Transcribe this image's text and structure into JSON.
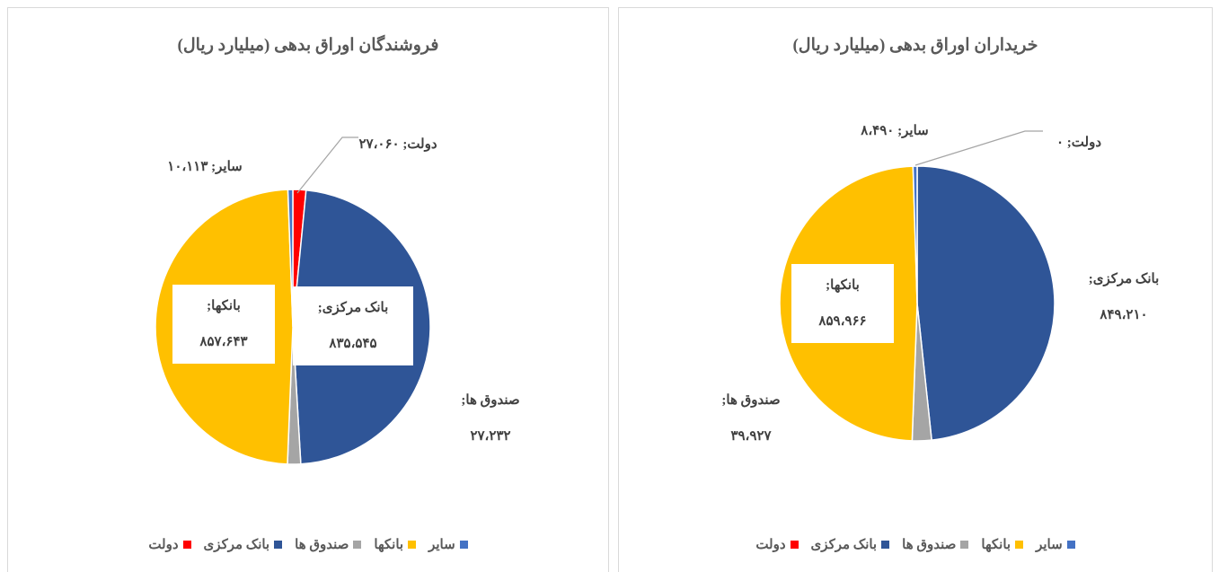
{
  "chart_data": [
    {
      "type": "pie",
      "title": "فروشندگان اوراق بدهی (میلیارد ریال)",
      "categories": [
        "دولت",
        "بانک مرکزی",
        "صندوق ها",
        "بانکها",
        "سایر"
      ],
      "values": [
        27060,
        835545,
        27232,
        857643,
        10113
      ],
      "value_labels": [
        "دولت; ۲۷،۰۶۰",
        "بانک مرکزی; ۸۳۵،۵۴۵",
        "صندوق ها; ۲۷،۲۳۲",
        "بانکها; ۸۵۷،۶۴۳",
        "سایر; ۱۰،۱۱۳"
      ],
      "colors": [
        "#ff0000",
        "#2f5597",
        "#a5a5a5",
        "#ffc000",
        "#4472c4"
      ]
    },
    {
      "type": "pie",
      "title": "خریداران اوراق بدهی (میلیارد ریال)",
      "categories": [
        "دولت",
        "بانک مرکزی",
        "صندوق ها",
        "بانکها",
        "سایر"
      ],
      "values": [
        0,
        849210,
        39927,
        859966,
        8490
      ],
      "value_labels": [
        "دولت; ۰",
        "بانک مرکزی; ۸۴۹،۲۱۰",
        "صندوق ها; ۳۹،۹۲۷",
        "بانکها; ۸۵۹،۹۶۶",
        "سایر; ۸،۴۹۰"
      ],
      "colors": [
        "#ff0000",
        "#2f5597",
        "#a5a5a5",
        "#ffc000",
        "#4472c4"
      ]
    }
  ]
}
